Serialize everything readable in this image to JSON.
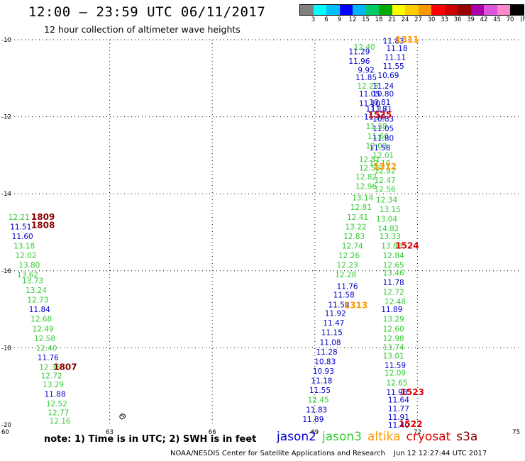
{
  "header": {
    "title": "12:00 – 23:59 UTC 06/11/2017",
    "subtitle": "12 hour collection of altimeter wave heights"
  },
  "colorbar": {
    "unit": "(ft)",
    "colors": [
      "#808080",
      "#00ffff",
      "#00bfff",
      "#0000ff",
      "#00b4ff",
      "#00cc66",
      "#00aa00",
      "#ffff00",
      "#ffcc00",
      "#ff9900",
      "#ff0000",
      "#cc0000",
      "#990000",
      "#aa00aa",
      "#dd55dd",
      "#ff88cc",
      "#000000"
    ],
    "labels": [
      "3",
      "6",
      "9",
      "12",
      "15",
      "18",
      "21",
      "24",
      "27",
      "30",
      "33",
      "36",
      "39",
      "42",
      "45",
      "70"
    ]
  },
  "chart_data": {
    "type": "scatter",
    "xlim": [
      60,
      75
    ],
    "ylim": [
      -20,
      -10
    ],
    "x_ticks": [
      "60",
      "63",
      "66",
      "69",
      "72",
      "75"
    ],
    "y_ticks": [
      "-10",
      "-12",
      "-14",
      "-16",
      "-18",
      "-20"
    ],
    "grid": true,
    "series_colors": {
      "jason2": "#0000cc",
      "jason3": "#33cc33",
      "altika": "#ff9900",
      "cryosat": "#dd0000",
      "s3a": "#880000"
    },
    "points": [
      {
        "x": 70.45,
        "y": -10.18,
        "v": "12.40",
        "s": "jason3"
      },
      {
        "x": 71.3,
        "y": -10.03,
        "v": "11.83",
        "s": "jason2"
      },
      {
        "x": 71.4,
        "y": -10.22,
        "v": "11.18",
        "s": "jason2"
      },
      {
        "x": 70.3,
        "y": -10.3,
        "v": "11.29",
        "s": "jason2"
      },
      {
        "x": 71.35,
        "y": -10.45,
        "v": "11.11",
        "s": "jason2"
      },
      {
        "x": 70.3,
        "y": -10.55,
        "v": "11.96",
        "s": "jason2"
      },
      {
        "x": 71.3,
        "y": -10.68,
        "v": "11.55",
        "s": "jason2"
      },
      {
        "x": 70.5,
        "y": -10.78,
        "v": "9.92",
        "s": "jason2"
      },
      {
        "x": 71.15,
        "y": -10.92,
        "v": "10.69",
        "s": "jason2"
      },
      {
        "x": 70.5,
        "y": -10.98,
        "v": "11.85",
        "s": "jason2"
      },
      {
        "x": 70.55,
        "y": -11.2,
        "v": "12.23",
        "s": "jason3"
      },
      {
        "x": 71.0,
        "y": -11.2,
        "v": "11.24",
        "s": "jason2"
      },
      {
        "x": 70.6,
        "y": -11.4,
        "v": "11.05",
        "s": "jason2"
      },
      {
        "x": 71.0,
        "y": -11.4,
        "v": "10.80",
        "s": "jason2"
      },
      {
        "x": 70.9,
        "y": -11.62,
        "v": "10.81",
        "s": "jason2"
      },
      {
        "x": 70.6,
        "y": -11.65,
        "v": "11.10",
        "s": "jason2"
      },
      {
        "x": 70.8,
        "y": -11.8,
        "v": "11.18",
        "s": "jason2"
      },
      {
        "x": 70.95,
        "y": -11.8,
        "v": "11.71",
        "s": "jason2"
      },
      {
        "x": 70.75,
        "y": -12.0,
        "v": "11.30",
        "s": "jason2"
      },
      {
        "x": 71.0,
        "y": -12.05,
        "v": "10.83",
        "s": "jason2"
      },
      {
        "x": 70.8,
        "y": -12.25,
        "v": "11.38",
        "s": "jason3"
      },
      {
        "x": 71.0,
        "y": -12.3,
        "v": "11.05",
        "s": "jason2"
      },
      {
        "x": 70.85,
        "y": -12.5,
        "v": "11.60",
        "s": "jason3"
      },
      {
        "x": 71.0,
        "y": -12.55,
        "v": "11.80",
        "s": "jason2"
      },
      {
        "x": 70.8,
        "y": -12.75,
        "v": "12.03",
        "s": "jason3"
      },
      {
        "x": 70.9,
        "y": -12.8,
        "v": "11.58",
        "s": "jason2"
      },
      {
        "x": 71.0,
        "y": -13.0,
        "v": "12.01",
        "s": "jason3"
      },
      {
        "x": 70.6,
        "y": -13.1,
        "v": "12.51",
        "s": "jason3"
      },
      {
        "x": 70.9,
        "y": -13.2,
        "v": "12.10",
        "s": "jason3"
      },
      {
        "x": 70.6,
        "y": -13.32,
        "v": "12.55",
        "s": "jason3"
      },
      {
        "x": 71.05,
        "y": -13.4,
        "v": "12.92",
        "s": "jason3"
      },
      {
        "x": 70.5,
        "y": -13.55,
        "v": "12.82",
        "s": "jason3"
      },
      {
        "x": 71.05,
        "y": -13.65,
        "v": "12.47",
        "s": "jason3"
      },
      {
        "x": 70.5,
        "y": -13.8,
        "v": "12.96",
        "s": "jason3"
      },
      {
        "x": 71.05,
        "y": -13.88,
        "v": "12.56",
        "s": "jason3"
      },
      {
        "x": 70.4,
        "y": -14.1,
        "v": "13.14",
        "s": "jason3"
      },
      {
        "x": 71.1,
        "y": -14.15,
        "v": "12.34",
        "s": "jason3"
      },
      {
        "x": 70.35,
        "y": -14.35,
        "v": "12.81",
        "s": "jason3"
      },
      {
        "x": 71.2,
        "y": -14.4,
        "v": "13.15",
        "s": "jason3"
      },
      {
        "x": 70.25,
        "y": -14.6,
        "v": "12.41",
        "s": "jason3"
      },
      {
        "x": 71.1,
        "y": -14.65,
        "v": "13.04",
        "s": "jason3"
      },
      {
        "x": 70.2,
        "y": -14.85,
        "v": "13.22",
        "s": "jason3"
      },
      {
        "x": 71.15,
        "y": -14.9,
        "v": "14.82",
        "s": "jason3"
      },
      {
        "x": 70.15,
        "y": -15.1,
        "v": "12.83",
        "s": "jason3"
      },
      {
        "x": 71.2,
        "y": -15.1,
        "v": "13.33",
        "s": "jason3"
      },
      {
        "x": 70.1,
        "y": -15.35,
        "v": "12.74",
        "s": "jason3"
      },
      {
        "x": 71.25,
        "y": -15.35,
        "v": "13.83",
        "s": "jason3"
      },
      {
        "x": 70.0,
        "y": -15.6,
        "v": "12.26",
        "s": "jason3"
      },
      {
        "x": 71.3,
        "y": -15.6,
        "v": "12.84",
        "s": "jason3"
      },
      {
        "x": 69.95,
        "y": -15.85,
        "v": "12.23",
        "s": "jason3"
      },
      {
        "x": 71.3,
        "y": -15.85,
        "v": "12.65",
        "s": "jason3"
      },
      {
        "x": 69.9,
        "y": -16.1,
        "v": "12.28",
        "s": "jason3"
      },
      {
        "x": 71.3,
        "y": -16.05,
        "v": "13.46",
        "s": "jason3"
      },
      {
        "x": 69.95,
        "y": -16.4,
        "v": "11.76",
        "s": "jason2"
      },
      {
        "x": 71.3,
        "y": -16.3,
        "v": "11.78",
        "s": "jason2"
      },
      {
        "x": 69.85,
        "y": -16.62,
        "v": "11.58",
        "s": "jason2"
      },
      {
        "x": 71.3,
        "y": -16.55,
        "v": "12.72",
        "s": "jason3"
      },
      {
        "x": 69.7,
        "y": -16.88,
        "v": "11.58",
        "s": "jason2"
      },
      {
        "x": 71.35,
        "y": -16.8,
        "v": "12.48",
        "s": "jason3"
      },
      {
        "x": 71.25,
        "y": -17.0,
        "v": "11.89",
        "s": "jason2"
      },
      {
        "x": 69.6,
        "y": -17.1,
        "v": "11.92",
        "s": "jason2"
      },
      {
        "x": 71.3,
        "y": -17.25,
        "v": "13.29",
        "s": "jason3"
      },
      {
        "x": 69.55,
        "y": -17.35,
        "v": "11.47",
        "s": "jason2"
      },
      {
        "x": 71.3,
        "y": -17.5,
        "v": "12.60",
        "s": "jason3"
      },
      {
        "x": 69.5,
        "y": -17.6,
        "v": "11.15",
        "s": "jason2"
      },
      {
        "x": 71.3,
        "y": -17.75,
        "v": "12.98",
        "s": "jason3"
      },
      {
        "x": 69.45,
        "y": -17.85,
        "v": "11.08",
        "s": "jason2"
      },
      {
        "x": 71.3,
        "y": -17.98,
        "v": "13.74",
        "s": "jason3"
      },
      {
        "x": 69.35,
        "y": -18.1,
        "v": "11.28",
        "s": "jason2"
      },
      {
        "x": 71.3,
        "y": -18.2,
        "v": "13.01",
        "s": "jason3"
      },
      {
        "x": 69.3,
        "y": -18.35,
        "v": "10.83",
        "s": "jason2"
      },
      {
        "x": 71.35,
        "y": -18.45,
        "v": "11.59",
        "s": "jason2"
      },
      {
        "x": 69.25,
        "y": -18.6,
        "v": "10.93",
        "s": "jason2"
      },
      {
        "x": 71.35,
        "y": -18.65,
        "v": "12.09",
        "s": "jason3"
      },
      {
        "x": 69.2,
        "y": -18.85,
        "v": "11.18",
        "s": "jason2"
      },
      {
        "x": 71.4,
        "y": -18.9,
        "v": "12.65",
        "s": "jason3"
      },
      {
        "x": 69.15,
        "y": -19.1,
        "v": "11.55",
        "s": "jason2"
      },
      {
        "x": 71.4,
        "y": -19.15,
        "v": "11.98",
        "s": "jason2"
      },
      {
        "x": 69.1,
        "y": -19.35,
        "v": "12.45",
        "s": "jason3"
      },
      {
        "x": 71.45,
        "y": -19.35,
        "v": "11.64",
        "s": "jason2"
      },
      {
        "x": 69.05,
        "y": -19.6,
        "v": "11.83",
        "s": "jason2"
      },
      {
        "x": 71.45,
        "y": -19.58,
        "v": "11.77",
        "s": "jason2"
      },
      {
        "x": 71.45,
        "y": -19.8,
        "v": "11.91",
        "s": "jason2"
      },
      {
        "x": 68.95,
        "y": -19.85,
        "v": "11.89",
        "s": "jason2"
      },
      {
        "x": 71.45,
        "y": -20.0,
        "v": "11.40",
        "s": "jason2"
      },
      {
        "x": 60.35,
        "y": -14.6,
        "v": "12.21",
        "s": "jason3"
      },
      {
        "x": 60.4,
        "y": -14.85,
        "v": "11.51",
        "s": "jason2"
      },
      {
        "x": 60.45,
        "y": -15.1,
        "v": "11.60",
        "s": "jason2"
      },
      {
        "x": 60.5,
        "y": -15.35,
        "v": "13.18",
        "s": "jason3"
      },
      {
        "x": 60.55,
        "y": -15.6,
        "v": "12.02",
        "s": "jason3"
      },
      {
        "x": 60.65,
        "y": -15.85,
        "v": "13.80",
        "s": "jason3"
      },
      {
        "x": 60.6,
        "y": -16.1,
        "v": "13.62",
        "s": "jason3"
      },
      {
        "x": 60.75,
        "y": -16.25,
        "v": "13.73",
        "s": "jason3"
      },
      {
        "x": 60.85,
        "y": -16.5,
        "v": "13.24",
        "s": "jason3"
      },
      {
        "x": 60.9,
        "y": -16.75,
        "v": "12.73",
        "s": "jason3"
      },
      {
        "x": 60.95,
        "y": -17.0,
        "v": "11.84",
        "s": "jason2"
      },
      {
        "x": 61.0,
        "y": -17.25,
        "v": "12.68",
        "s": "jason3"
      },
      {
        "x": 61.05,
        "y": -17.5,
        "v": "12.49",
        "s": "jason3"
      },
      {
        "x": 61.1,
        "y": -17.75,
        "v": "12.58",
        "s": "jason3"
      },
      {
        "x": 61.15,
        "y": -18.0,
        "v": "12.40",
        "s": "jason3"
      },
      {
        "x": 61.2,
        "y": -18.25,
        "v": "11.76",
        "s": "jason2"
      },
      {
        "x": 61.25,
        "y": -18.5,
        "v": "12.36",
        "s": "jason3"
      },
      {
        "x": 61.3,
        "y": -18.72,
        "v": "12.72",
        "s": "jason3"
      },
      {
        "x": 61.35,
        "y": -18.95,
        "v": "13.29",
        "s": "jason3"
      },
      {
        "x": 61.4,
        "y": -19.2,
        "v": "11.88",
        "s": "jason2"
      },
      {
        "x": 61.45,
        "y": -19.45,
        "v": "12.52",
        "s": "jason3"
      },
      {
        "x": 61.5,
        "y": -19.68,
        "v": "12.77",
        "s": "jason3"
      },
      {
        "x": 61.55,
        "y": -19.9,
        "v": "12.16",
        "s": "jason3"
      }
    ],
    "passes": [
      {
        "x": 71.7,
        "y": -10.0,
        "v": "1311",
        "s": "altika"
      },
      {
        "x": 70.9,
        "y": -11.95,
        "v": "1525",
        "s": "cryosat"
      },
      {
        "x": 71.05,
        "y": -13.3,
        "v": "1312",
        "s": "altika"
      },
      {
        "x": 71.7,
        "y": -15.35,
        "v": "1524",
        "s": "cryosat"
      },
      {
        "x": 70.2,
        "y": -16.9,
        "v": "1313",
        "s": "altika"
      },
      {
        "x": 71.85,
        "y": -19.15,
        "v": "1523",
        "s": "cryosat"
      },
      {
        "x": 71.8,
        "y": -19.98,
        "v": "1522",
        "s": "cryosat"
      },
      {
        "x": 61.05,
        "y": -14.6,
        "v": "1809",
        "s": "s3a"
      },
      {
        "x": 61.05,
        "y": -14.82,
        "v": "1808",
        "s": "s3a"
      },
      {
        "x": 61.7,
        "y": -18.5,
        "v": "1807",
        "s": "s3a"
      }
    ]
  },
  "note": "note: 1) Time is in UTC; 2) SWH is in feet",
  "legend": [
    {
      "name": "jason2",
      "color": "#0000cc"
    },
    {
      "name": "jason3",
      "color": "#33cc33"
    },
    {
      "name": "altika",
      "color": "#ff9900"
    },
    {
      "name": "cryosat",
      "color": "#dd0000"
    },
    {
      "name": "s3a",
      "color": "#880000"
    }
  ],
  "footer": {
    "credit": "NOAA/NESDIS Center for Satellite Applications and Research",
    "timestamp": "Jun 12 12:27:44 UTC 2017"
  }
}
